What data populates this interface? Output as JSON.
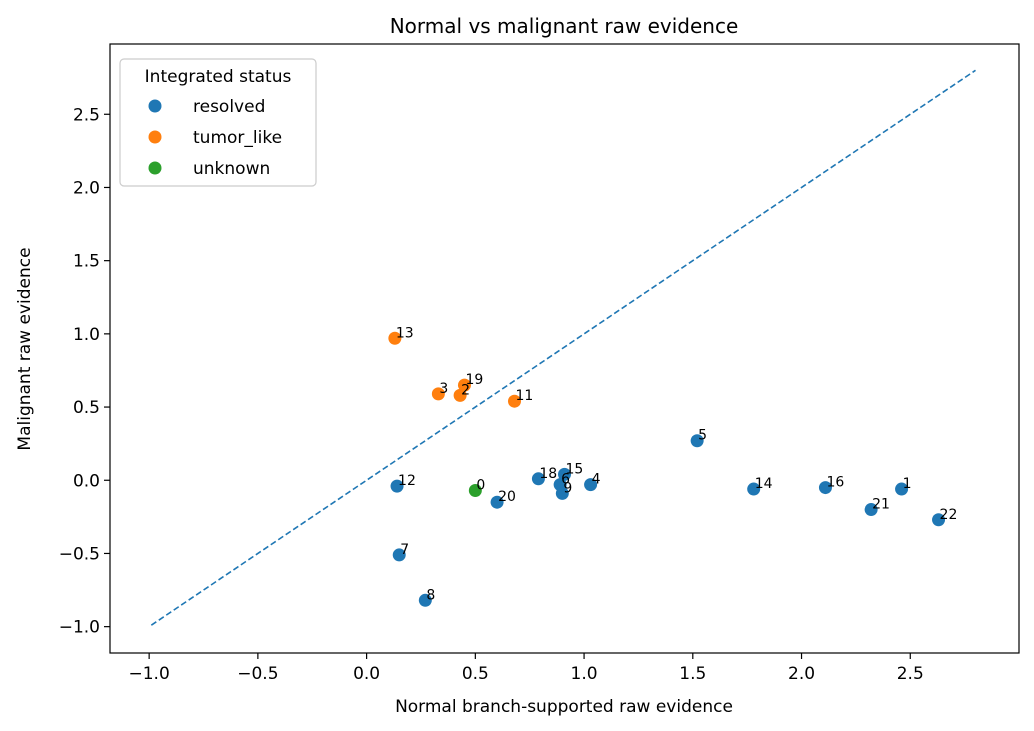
{
  "chart_data": {
    "type": "scatter",
    "title": "Normal vs malignant raw evidence",
    "xlabel": "Normal branch-supported raw evidence",
    "ylabel": "Malignant raw evidence",
    "xlim": [
      -1.18,
      3.0
    ],
    "ylim": [
      -1.18,
      2.98
    ],
    "xticks": [
      -1.0,
      -0.5,
      0.0,
      0.5,
      1.0,
      1.5,
      2.0,
      2.5
    ],
    "yticks": [
      -1.0,
      -0.5,
      0.0,
      0.5,
      1.0,
      1.5,
      2.0,
      2.5
    ],
    "xtick_labels": [
      "−1.0",
      "−0.5",
      "0.0",
      "0.5",
      "1.0",
      "1.5",
      "2.0",
      "2.5"
    ],
    "ytick_labels": [
      "−1.0",
      "−0.5",
      "0.0",
      "0.5",
      "1.0",
      "1.5",
      "2.0",
      "2.5"
    ],
    "grid": false,
    "reference_line": {
      "style": "dashed",
      "color": "#1f77b4",
      "from": [
        -0.99,
        -0.99
      ],
      "to": [
        2.8,
        2.8
      ]
    },
    "legend": {
      "title": "Integrated status",
      "placement": "top-left",
      "entries": [
        {
          "name": "resolved",
          "color": "#1f77b4"
        },
        {
          "name": "tumor_like",
          "color": "#ff7f0e"
        },
        {
          "name": "unknown",
          "color": "#2ca02c"
        }
      ]
    },
    "series": [
      {
        "name": "resolved",
        "color": "#1f77b4",
        "points": [
          {
            "label": "1",
            "x": 2.46,
            "y": -0.06
          },
          {
            "label": "4",
            "x": 1.03,
            "y": -0.03
          },
          {
            "label": "5",
            "x": 1.52,
            "y": 0.27
          },
          {
            "label": "6",
            "x": 0.89,
            "y": -0.03
          },
          {
            "label": "7",
            "x": 0.15,
            "y": -0.51
          },
          {
            "label": "8",
            "x": 0.27,
            "y": -0.82
          },
          {
            "label": "9",
            "x": 0.9,
            "y": -0.09
          },
          {
            "label": "12",
            "x": 0.14,
            "y": -0.04
          },
          {
            "label": "14",
            "x": 1.78,
            "y": -0.06
          },
          {
            "label": "15",
            "x": 0.91,
            "y": 0.04
          },
          {
            "label": "16",
            "x": 2.11,
            "y": -0.05
          },
          {
            "label": "18",
            "x": 0.79,
            "y": 0.01
          },
          {
            "label": "20",
            "x": 0.6,
            "y": -0.15
          },
          {
            "label": "21",
            "x": 2.32,
            "y": -0.2
          },
          {
            "label": "22",
            "x": 2.63,
            "y": -0.27
          }
        ]
      },
      {
        "name": "tumor_like",
        "color": "#ff7f0e",
        "points": [
          {
            "label": "2",
            "x": 0.43,
            "y": 0.58
          },
          {
            "label": "3",
            "x": 0.33,
            "y": 0.59
          },
          {
            "label": "11",
            "x": 0.68,
            "y": 0.54
          },
          {
            "label": "13",
            "x": 0.13,
            "y": 0.97
          },
          {
            "label": "19",
            "x": 0.45,
            "y": 0.65
          }
        ]
      },
      {
        "name": "unknown",
        "color": "#2ca02c",
        "points": [
          {
            "label": "0",
            "x": 0.5,
            "y": -0.07
          }
        ]
      }
    ]
  }
}
